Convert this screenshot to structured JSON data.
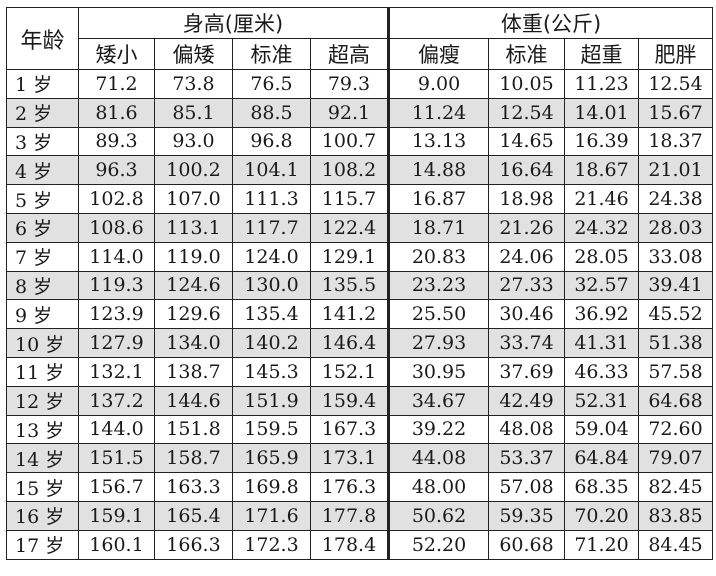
{
  "headers": {
    "age": "年龄",
    "height_group": "身高(厘米)",
    "weight_group": "体重(公斤)",
    "height_cols": [
      "矮小",
      "偏矮",
      "标准",
      "超高"
    ],
    "weight_cols": [
      "偏瘦",
      "标准",
      "超重",
      "肥胖"
    ]
  },
  "rows": [
    {
      "age": "1",
      "unit": "岁",
      "h": [
        "71.2",
        "73.8",
        "76.5",
        "79.3"
      ],
      "w": [
        "9.00",
        "10.05",
        "11.23",
        "12.54"
      ]
    },
    {
      "age": "2",
      "unit": "岁",
      "h": [
        "81.6",
        "85.1",
        "88.5",
        "92.1"
      ],
      "w": [
        "11.24",
        "12.54",
        "14.01",
        "15.67"
      ]
    },
    {
      "age": "3",
      "unit": "岁",
      "h": [
        "89.3",
        "93.0",
        "96.8",
        "100.7"
      ],
      "w": [
        "13.13",
        "14.65",
        "16.39",
        "18.37"
      ]
    },
    {
      "age": "4",
      "unit": "岁",
      "h": [
        "96.3",
        "100.2",
        "104.1",
        "108.2"
      ],
      "w": [
        "14.88",
        "16.64",
        "18.67",
        "21.01"
      ]
    },
    {
      "age": "5",
      "unit": "岁",
      "h": [
        "102.8",
        "107.0",
        "111.3",
        "115.7"
      ],
      "w": [
        "16.87",
        "18.98",
        "21.46",
        "24.38"
      ]
    },
    {
      "age": "6",
      "unit": "岁",
      "h": [
        "108.6",
        "113.1",
        "117.7",
        "122.4"
      ],
      "w": [
        "18.71",
        "21.26",
        "24.32",
        "28.03"
      ]
    },
    {
      "age": "7",
      "unit": "岁",
      "h": [
        "114.0",
        "119.0",
        "124.0",
        "129.1"
      ],
      "w": [
        "20.83",
        "24.06",
        "28.05",
        "33.08"
      ]
    },
    {
      "age": "8",
      "unit": "岁",
      "h": [
        "119.3",
        "124.6",
        "130.0",
        "135.5"
      ],
      "w": [
        "23.23",
        "27.33",
        "32.57",
        "39.41"
      ]
    },
    {
      "age": "9",
      "unit": "岁",
      "h": [
        "123.9",
        "129.6",
        "135.4",
        "141.2"
      ],
      "w": [
        "25.50",
        "30.46",
        "36.92",
        "45.52"
      ]
    },
    {
      "age": "10",
      "unit": "岁",
      "h": [
        "127.9",
        "134.0",
        "140.2",
        "146.4"
      ],
      "w": [
        "27.93",
        "33.74",
        "41.31",
        "51.38"
      ]
    },
    {
      "age": "11",
      "unit": "岁",
      "h": [
        "132.1",
        "138.7",
        "145.3",
        "152.1"
      ],
      "w": [
        "30.95",
        "37.69",
        "46.33",
        "57.58"
      ]
    },
    {
      "age": "12",
      "unit": "岁",
      "h": [
        "137.2",
        "144.6",
        "151.9",
        "159.4"
      ],
      "w": [
        "34.67",
        "42.49",
        "52.31",
        "64.68"
      ]
    },
    {
      "age": "13",
      "unit": "岁",
      "h": [
        "144.0",
        "151.8",
        "159.5",
        "167.3"
      ],
      "w": [
        "39.22",
        "48.08",
        "59.04",
        "72.60"
      ]
    },
    {
      "age": "14",
      "unit": "岁",
      "h": [
        "151.5",
        "158.7",
        "165.9",
        "173.1"
      ],
      "w": [
        "44.08",
        "53.37",
        "64.84",
        "79.07"
      ]
    },
    {
      "age": "15",
      "unit": "岁",
      "h": [
        "156.7",
        "163.3",
        "169.8",
        "176.3"
      ],
      "w": [
        "48.00",
        "57.08",
        "68.35",
        "82.45"
      ]
    },
    {
      "age": "16",
      "unit": "岁",
      "h": [
        "159.1",
        "165.4",
        "171.6",
        "177.8"
      ],
      "w": [
        "50.62",
        "59.35",
        "70.20",
        "83.85"
      ]
    },
    {
      "age": "17",
      "unit": "岁",
      "h": [
        "160.1",
        "166.3",
        "172.3",
        "178.4"
      ],
      "w": [
        "52.20",
        "60.68",
        "71.20",
        "84.45"
      ]
    }
  ]
}
